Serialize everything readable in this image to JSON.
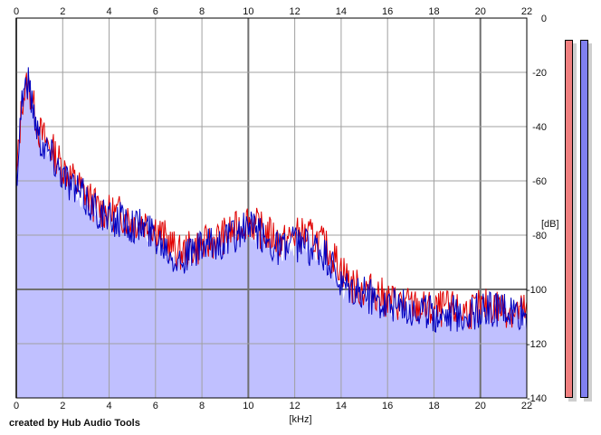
{
  "credit_text": "created by Hub Audio Tools",
  "meters": [
    {
      "name": "left-channel",
      "color": "#f08080"
    },
    {
      "name": "right-channel",
      "color": "#8080f0"
    }
  ],
  "chart_data": {
    "type": "line",
    "xlabel": "[kHz]",
    "ylabel": "[dB]",
    "xlim": [
      0,
      22
    ],
    "ylim": [
      -140,
      0
    ],
    "x_ticks": [
      0,
      2,
      4,
      6,
      8,
      10,
      12,
      14,
      16,
      18,
      20,
      22
    ],
    "y_ticks": [
      0,
      -20,
      -40,
      -60,
      -80,
      -100,
      -120,
      -140
    ],
    "grid": true,
    "fill_color": "#c0c0ff",
    "series": [
      {
        "color": "#e00000",
        "x": [
          0,
          0.25,
          0.5,
          0.75,
          1,
          1.5,
          2,
          2.5,
          3,
          3.5,
          4,
          4.5,
          5,
          5.5,
          6,
          6.5,
          7,
          7.5,
          8,
          8.5,
          9,
          9.5,
          10,
          10.5,
          11,
          11.5,
          12,
          12.5,
          13,
          13.5,
          14,
          14.5,
          15,
          15.5,
          16,
          16.5,
          17,
          17.5,
          18,
          18.5,
          19,
          19.5,
          20,
          20.5,
          21,
          21.5,
          22
        ],
        "values": [
          -60,
          -30,
          -24,
          -33,
          -42,
          -48,
          -55,
          -60,
          -65,
          -70,
          -72,
          -72,
          -75,
          -75,
          -77,
          -82,
          -87,
          -85,
          -84,
          -82,
          -80,
          -78,
          -74,
          -78,
          -80,
          -83,
          -80,
          -80,
          -82,
          -86,
          -92,
          -99,
          -100,
          -101,
          -104,
          -105,
          -106,
          -107,
          -108,
          -107,
          -108,
          -108,
          -107,
          -106,
          -107,
          -108,
          -108
        ]
      },
      {
        "color": "#0000c0",
        "x": [
          0,
          0.25,
          0.5,
          0.75,
          1,
          1.5,
          2,
          2.5,
          3,
          3.5,
          4,
          4.5,
          5,
          5.5,
          6,
          6.5,
          7,
          7.5,
          8,
          8.5,
          9,
          9.5,
          10,
          10.5,
          11,
          11.5,
          12,
          12.5,
          13,
          13.5,
          14,
          14.5,
          15,
          15.5,
          16,
          16.5,
          17,
          17.5,
          18,
          18.5,
          19,
          19.5,
          20,
          20.5,
          21,
          21.5,
          22
        ],
        "values": [
          -60,
          -28,
          -23,
          -34,
          -44,
          -50,
          -57,
          -63,
          -67,
          -71,
          -75,
          -74,
          -76,
          -77,
          -80,
          -84,
          -89,
          -87,
          -85,
          -84,
          -82,
          -80,
          -77,
          -80,
          -83,
          -85,
          -83,
          -84,
          -86,
          -90,
          -100,
          -101,
          -102,
          -103,
          -105,
          -106,
          -107,
          -108,
          -109,
          -108,
          -109,
          -109,
          -108,
          -107,
          -108,
          -109,
          -110
        ]
      }
    ]
  }
}
